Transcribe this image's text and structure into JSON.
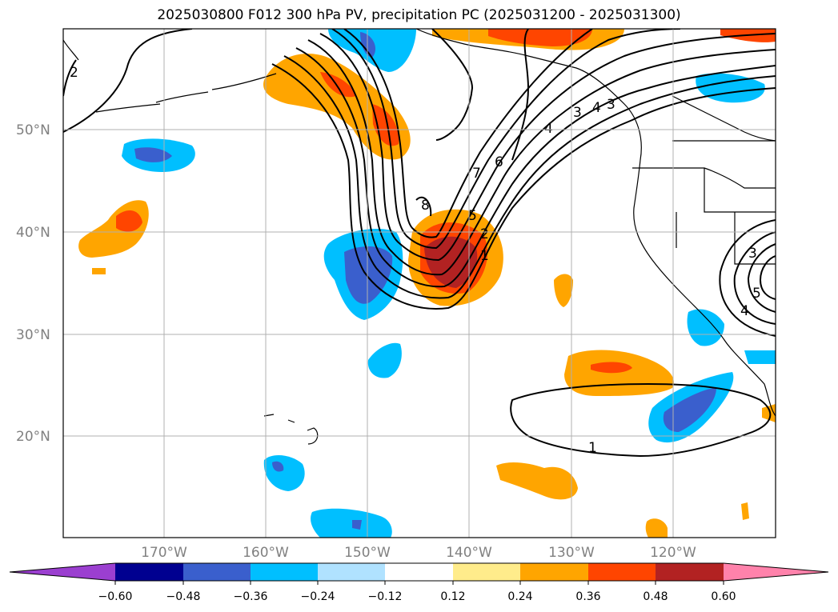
{
  "title": "2025030800 F012 300 hPa PV, precipitation PC (2025031200 - 2025031300)",
  "axes": {
    "lat_labels": [
      "50°N",
      "40°N",
      "30°N",
      "20°N"
    ],
    "lon_labels": [
      "170°W",
      "160°W",
      "150°W",
      "140°W",
      "130°W",
      "120°W"
    ]
  },
  "pv_contour_labels": [
    "2",
    "8",
    "7",
    "6",
    "5",
    "4",
    "3",
    "2",
    "1",
    "4",
    "3",
    "3",
    "4",
    "5",
    "1"
  ],
  "colorbar": {
    "colors": [
      "#9b3fd0",
      "#000090",
      "#3a5fcd",
      "#00bfff",
      "#b0e2ff",
      "#ffffff",
      "#ffec8b",
      "#ffa500",
      "#ff4500",
      "#b22222",
      "#ff82ab"
    ],
    "tick_labels": [
      "−0.60",
      "−0.48",
      "−0.36",
      "−0.24",
      "−0.12",
      "0.12",
      "0.24",
      "0.36",
      "0.48",
      "0.60"
    ]
  }
}
